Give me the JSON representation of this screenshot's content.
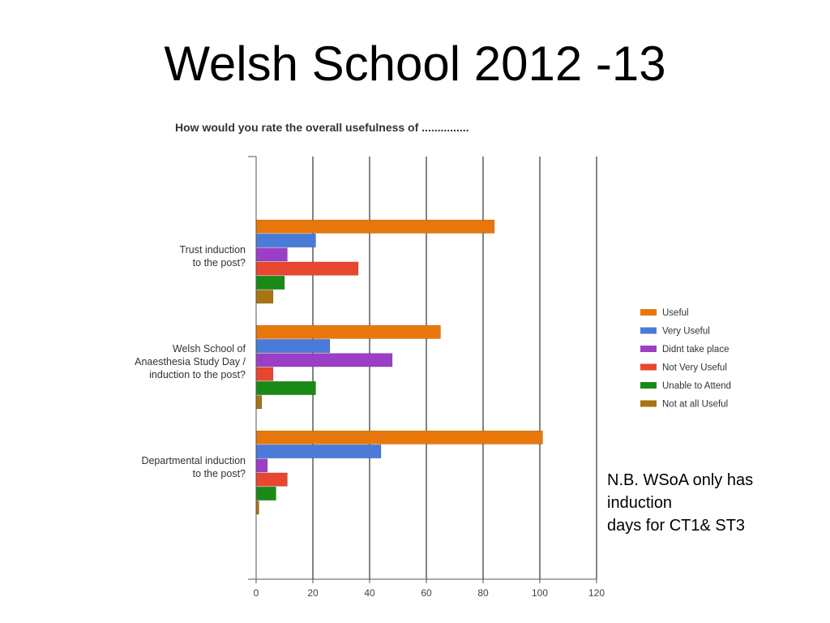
{
  "slide": {
    "title": "Welsh School 2012 -13"
  },
  "note": {
    "lines": [
      "N.B. WSoA only has",
      "induction",
      "days for CT1& ST3"
    ]
  },
  "chart_data": {
    "type": "bar",
    "orientation": "horizontal",
    "title": "How would you rate the overall usefulness of ...............",
    "xlabel": "",
    "ylabel": "",
    "xlim": [
      0,
      120
    ],
    "xticks": [
      0,
      20,
      40,
      60,
      80,
      100,
      120
    ],
    "grid": true,
    "legend_position": "right",
    "categories": [
      [
        "Trust induction",
        "to the post?"
      ],
      [
        "Welsh School of",
        "Anaesthesia Study Day /",
        "induction to the post?"
      ],
      [
        "Departmental induction",
        "to the post?"
      ]
    ],
    "series": [
      {
        "name": "Useful",
        "color": "#e8780b",
        "values": [
          84,
          65,
          101
        ]
      },
      {
        "name": "Very Useful",
        "color": "#4a7bd8",
        "values": [
          21,
          26,
          44
        ]
      },
      {
        "name": "Didnt take place",
        "color": "#9b3fc7",
        "values": [
          11,
          48,
          4
        ]
      },
      {
        "name": "Not Very Useful",
        "color": "#e8462f",
        "values": [
          36,
          6,
          11
        ]
      },
      {
        "name": "Unable to Attend",
        "color": "#1a8a16",
        "values": [
          10,
          21,
          7
        ]
      },
      {
        "name": "Not at all Useful",
        "color": "#a97412",
        "values": [
          6,
          2,
          1
        ]
      }
    ]
  }
}
